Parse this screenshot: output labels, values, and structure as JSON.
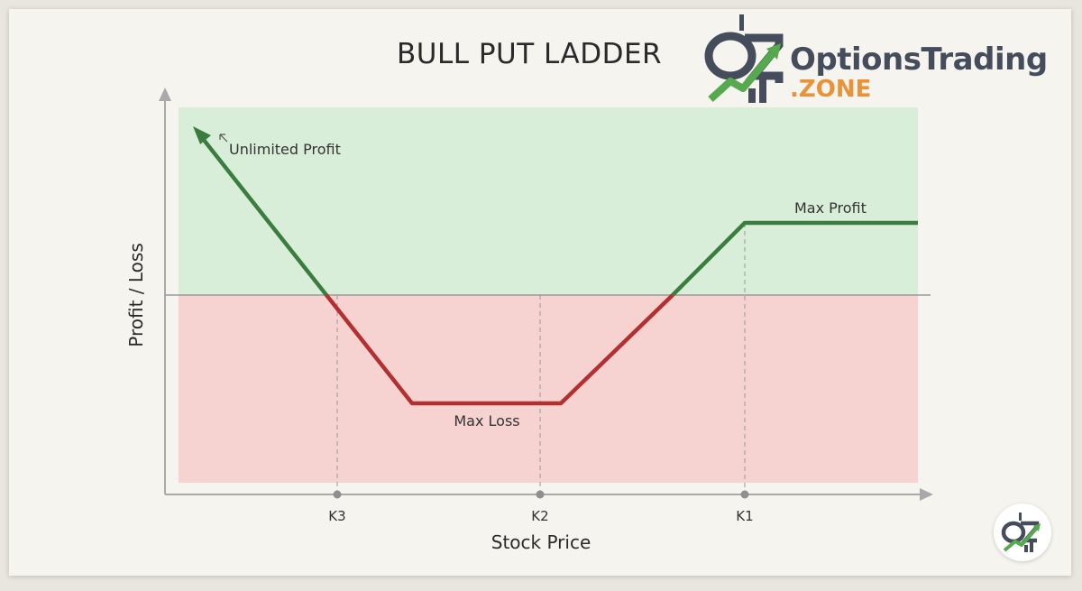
{
  "header": {
    "title": "BULL PUT LADDER",
    "brand_name": "OptionsTrading",
    "brand_suffix": ".ZONE"
  },
  "colors": {
    "profit_line": "#3b7d3f",
    "loss_line": "#b42f2f",
    "profit_zone": "#d9eed8",
    "loss_zone": "#f6d3d1",
    "brand_dark": "#454d5c",
    "brand_orange": "#e9923a",
    "brand_green": "#56a94c"
  },
  "chart_data": {
    "type": "line",
    "title": "BULL PUT LADDER",
    "xlabel": "Stock Price",
    "ylabel": "Profit / Loss",
    "x_ticks": [
      "K3",
      "K2",
      "K1"
    ],
    "grid": false,
    "series": [
      {
        "x": [
          "far left",
          "K3 breakeven",
          "below K3",
          "above K2",
          "upper breakeven",
          "K1",
          "far right"
        ],
        "y": [
          "unlimited profit",
          0,
          "max loss",
          "max loss",
          0,
          "max profit",
          "max profit"
        ]
      }
    ],
    "annotations": [
      "Unlimited Profit",
      "Max Profit",
      "Max Loss"
    ]
  }
}
